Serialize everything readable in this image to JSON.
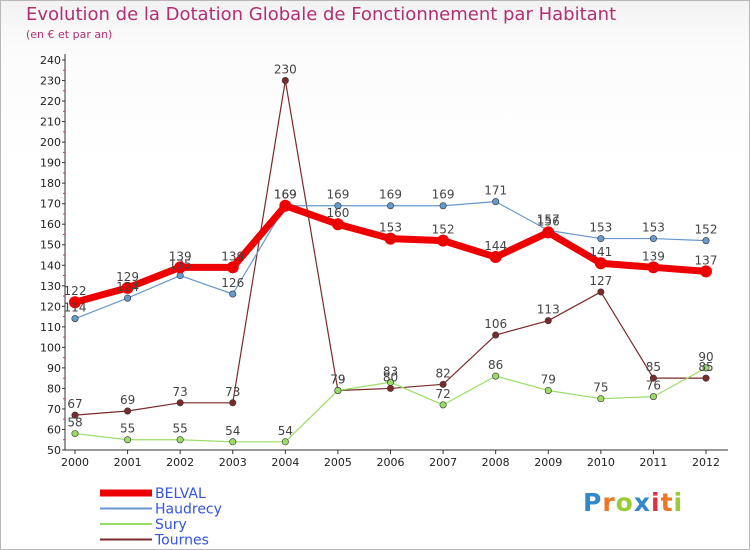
{
  "chart_data": {
    "type": "line",
    "title": "Evolution de la Dotation Globale de Fonctionnement par Habitant",
    "subtitle": "(en € et par an)",
    "x": [
      "2000",
      "2001",
      "2002",
      "2003",
      "2004",
      "2005",
      "2006",
      "2007",
      "2008",
      "2009",
      "2010",
      "2011",
      "2012"
    ],
    "ylim": [
      50,
      240
    ],
    "yticks": [
      50,
      60,
      70,
      80,
      90,
      100,
      110,
      120,
      130,
      140,
      150,
      160,
      170,
      180,
      190,
      200,
      210,
      220,
      230,
      240
    ],
    "grid": false,
    "legend_position": "bottom-left",
    "series": [
      {
        "name": "BELVAL",
        "color": "#ee0000",
        "values": [
          122,
          129,
          139,
          139,
          169,
          160,
          153,
          152,
          144,
          156,
          141,
          139,
          137
        ]
      },
      {
        "name": "Haudrecy",
        "color": "#6699cc",
        "values": [
          114,
          124,
          135,
          126,
          169,
          169,
          169,
          169,
          171,
          157,
          153,
          153,
          152
        ]
      },
      {
        "name": "Sury",
        "color": "#99dd66",
        "values": [
          58,
          55,
          55,
          54,
          54,
          79,
          83,
          72,
          86,
          79,
          75,
          76,
          90
        ]
      },
      {
        "name": "Tournes",
        "color": "#7a2a2a",
        "values": [
          67,
          69,
          73,
          73,
          230,
          79,
          80,
          82,
          106,
          113,
          127,
          85,
          85
        ]
      }
    ]
  },
  "logo": {
    "text": "Proxiti",
    "colors": [
      "#3388cc",
      "#ee7722",
      "#99cc33",
      "#3388cc",
      "#dd3344",
      "#ee7722",
      "#99cc33"
    ]
  }
}
